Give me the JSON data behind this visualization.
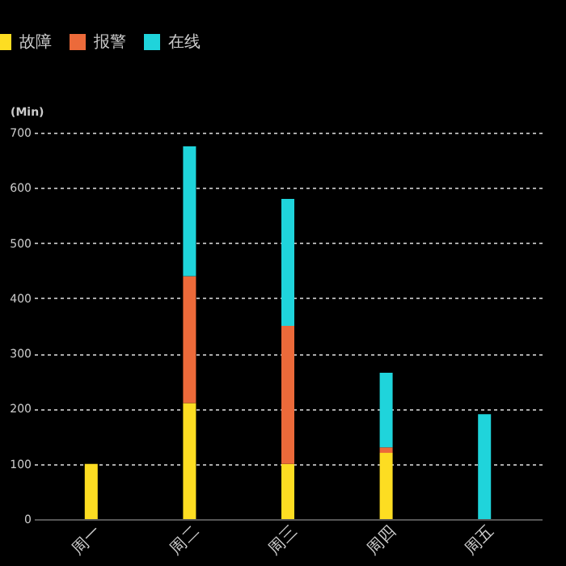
{
  "chart_data": {
    "type": "bar",
    "stacked": true,
    "ylabel": "(Min)",
    "categories": [
      "周一",
      "周二",
      "周三",
      "周四",
      "周五"
    ],
    "series": [
      {
        "name": "故障",
        "color": "#fddd22",
        "values": [
          100,
          210,
          100,
          120,
          null
        ]
      },
      {
        "name": "报警",
        "color": "#ec6a3a",
        "values": [
          null,
          230,
          250,
          10,
          null
        ]
      },
      {
        "name": "在线",
        "color": "#1fd4db",
        "values": [
          null,
          235,
          230,
          135,
          190
        ]
      }
    ],
    "ylim": [
      0,
      700
    ],
    "yticks": [
      0,
      100,
      200,
      300,
      400,
      500,
      600,
      700
    ],
    "grid": "y",
    "legend": "top left"
  }
}
